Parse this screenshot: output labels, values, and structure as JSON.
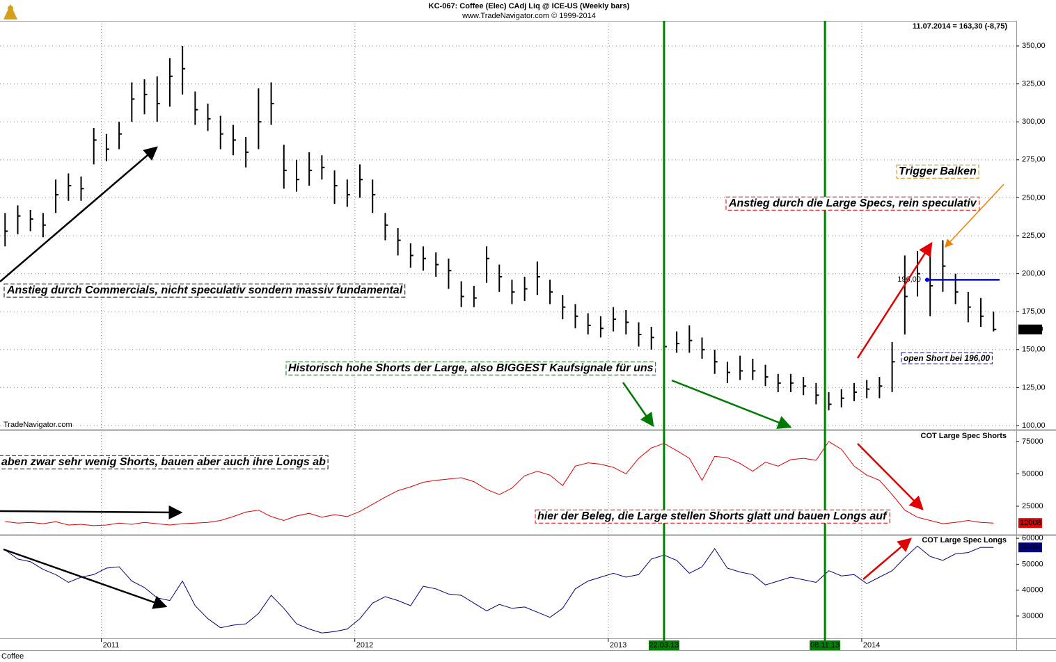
{
  "header": {
    "title": "KC-067:  Coffee (Elec) CAdj Liq @ ICE-US  (Weekly bars)",
    "subtitle": "www.TradeNavigator.com © 1999-2014",
    "last_quote": "11.07.2014 = 163,30 (-8,75)",
    "watermark": "TradeNavigator.com",
    "footer": "Coffee"
  },
  "chart_data": {
    "type": "ohlc",
    "x": [
      2010.62,
      2010.67,
      2010.72,
      2010.77,
      2010.82,
      2010.87,
      2010.92,
      2010.97,
      2011.02,
      2011.07,
      2011.12,
      2011.17,
      2011.22,
      2011.27,
      2011.32,
      2011.37,
      2011.42,
      2011.47,
      2011.52,
      2011.57,
      2011.62,
      2011.67,
      2011.72,
      2011.77,
      2011.82,
      2011.87,
      2011.92,
      2011.97,
      2012.02,
      2012.07,
      2012.12,
      2012.17,
      2012.22,
      2012.27,
      2012.32,
      2012.37,
      2012.42,
      2012.47,
      2012.52,
      2012.57,
      2012.62,
      2012.67,
      2012.72,
      2012.77,
      2012.82,
      2012.87,
      2012.92,
      2012.97,
      2013.02,
      2013.07,
      2013.12,
      2013.17,
      2013.22,
      2013.27,
      2013.32,
      2013.37,
      2013.42,
      2013.47,
      2013.52,
      2013.57,
      2013.62,
      2013.67,
      2013.72,
      2013.77,
      2013.82,
      2013.87,
      2013.92,
      2013.97,
      2014.02,
      2014.07,
      2014.12,
      2014.17,
      2014.22,
      2014.27,
      2014.32,
      2014.37,
      2014.42,
      2014.47,
      2014.52
    ],
    "xlim": [
      2010.6,
      2014.61
    ],
    "xticks": [
      2011,
      2012,
      2013,
      2014
    ],
    "markers": [
      {
        "value": 2013.22,
        "label": "22.03.13",
        "color": "#008000"
      },
      {
        "value": 2013.855,
        "label": "08.11.13",
        "color": "#008000"
      }
    ],
    "price": {
      "color": "#000000",
      "high": [
        240,
        245,
        242,
        240,
        262,
        266,
        264,
        296,
        292,
        300,
        326,
        328,
        330,
        342,
        350,
        320,
        312,
        304,
        298,
        290,
        322,
        326,
        285,
        275,
        280,
        278,
        268,
        262,
        272,
        262,
        240,
        230,
        220,
        218,
        214,
        210,
        195,
        192,
        218,
        206,
        196,
        198,
        208,
        196,
        186,
        180,
        174,
        172,
        178,
        176,
        168,
        165,
        158,
        162,
        166,
        158,
        150,
        142,
        146,
        144,
        140,
        134,
        134,
        132,
        128,
        122,
        124,
        128,
        130,
        132,
        155,
        212,
        215,
        212,
        222,
        200,
        188,
        184,
        175
      ],
      "low": [
        218,
        226,
        228,
        224,
        240,
        248,
        248,
        272,
        274,
        282,
        300,
        305,
        300,
        310,
        318,
        298,
        294,
        282,
        278,
        270,
        282,
        298,
        256,
        254,
        258,
        262,
        246,
        244,
        250,
        240,
        222,
        212,
        204,
        202,
        198,
        190,
        178,
        178,
        194,
        188,
        180,
        182,
        186,
        180,
        170,
        164,
        160,
        158,
        162,
        160,
        152,
        150,
        146,
        148,
        148,
        144,
        134,
        128,
        130,
        130,
        126,
        122,
        122,
        120,
        114,
        110,
        112,
        116,
        118,
        118,
        122,
        160,
        185,
        172,
        188,
        180,
        168,
        165,
        162
      ],
      "close": [
        228,
        238,
        236,
        232,
        252,
        258,
        256,
        288,
        282,
        292,
        315,
        318,
        312,
        330,
        335,
        308,
        302,
        292,
        288,
        280,
        300,
        312,
        268,
        262,
        268,
        270,
        258,
        252,
        262,
        252,
        232,
        222,
        212,
        210,
        206,
        202,
        185,
        184,
        210,
        198,
        188,
        190,
        198,
        188,
        178,
        172,
        166,
        164,
        170,
        168,
        160,
        158,
        152,
        154,
        156,
        150,
        142,
        135,
        136,
        136,
        132,
        128,
        128,
        126,
        120,
        114,
        118,
        122,
        124,
        126,
        142,
        185,
        200,
        192,
        205,
        188,
        178,
        172,
        163.3
      ],
      "ylim": [
        97.7,
        366.5
      ],
      "yticks": [
        {
          "value": 100,
          "label": "100,00"
        },
        {
          "value": 125,
          "label": "125,00"
        },
        {
          "value": 150,
          "label": "150,00"
        },
        {
          "value": 175,
          "label": "175,00"
        },
        {
          "value": 200,
          "label": "200,00"
        },
        {
          "value": 225,
          "label": "225,00"
        },
        {
          "value": 250,
          "label": "250,00"
        },
        {
          "value": 275,
          "label": "275,00"
        },
        {
          "value": 300,
          "label": "300,00"
        },
        {
          "value": 325,
          "label": "325,00"
        },
        {
          "value": 350,
          "label": "350,00"
        }
      ],
      "last_label": "163,30",
      "level": {
        "value": 196,
        "label": "196,00",
        "color": "#0000ff",
        "from": 2014.25
      }
    },
    "annotations": [
      {
        "text": "Anstieg durch Commercials, nicht speculativ sondern massiv fundamental",
        "color": "#000000"
      },
      {
        "text": "Historisch hohe Shorts der Large, also BIGGEST Kaufsignale für uns",
        "color": "#007a00"
      },
      {
        "text": "Trigger Balken",
        "color": "#f08000"
      },
      {
        "text": "Anstieg durch die Large Specs, rein speculativ",
        "color": "#e00000"
      },
      {
        "text": "open Short bei 196,00",
        "color": "#0000c0"
      },
      {
        "text": "aben zwar sehr wenig Shorts, bauen aber auch ihre Longs ab",
        "color": "#000000"
      },
      {
        "text": "hier der Beleg, die Large stellen Shorts glatt und bauen Longs auf",
        "color": "#e00000"
      }
    ],
    "panels": [
      {
        "type": "line",
        "title": "COT Large Spec Shorts",
        "color": "#e00000",
        "ylim": [
          3500,
          83000
        ],
        "yticks": [
          25000,
          50000,
          75000
        ],
        "values": [
          13200,
          12000,
          12500,
          11500,
          13000,
          10500,
          11000,
          10000,
          10500,
          12000,
          11000,
          12500,
          11500,
          10500,
          11500,
          12000,
          12500,
          14000,
          17000,
          20500,
          22000,
          17000,
          14000,
          17500,
          19500,
          16500,
          18500,
          17000,
          21000,
          26500,
          32000,
          37000,
          40000,
          43500,
          45000,
          46000,
          47000,
          44000,
          38000,
          34000,
          39000,
          48500,
          52000,
          49000,
          41000,
          56000,
          58500,
          57500,
          55000,
          50000,
          62000,
          70000,
          73500,
          68000,
          62000,
          45000,
          63500,
          62500,
          58000,
          52000,
          59000,
          56000,
          61000,
          62000,
          60500,
          75000,
          69000,
          56000,
          49000,
          45000,
          34000,
          22000,
          16500,
          14000,
          11500,
          12500,
          14000,
          12500,
          12008
        ]
      },
      {
        "type": "line",
        "title": "COT Large Spec Longs",
        "color": "#000080",
        "ylim": [
          21400,
          61100
        ],
        "yticks": [
          30000,
          40000,
          50000,
          60000
        ],
        "values": [
          55500,
          52000,
          51000,
          48000,
          46000,
          43000,
          45000,
          46000,
          48500,
          49000,
          43500,
          41000,
          37000,
          36000,
          43500,
          34000,
          29000,
          25500,
          26500,
          27000,
          31000,
          38000,
          33000,
          27000,
          25000,
          23500,
          24000,
          25000,
          29000,
          35000,
          37500,
          36000,
          34000,
          41500,
          40500,
          38500,
          38000,
          35000,
          32000,
          34500,
          33000,
          33500,
          31500,
          29500,
          33000,
          40500,
          43500,
          45000,
          46500,
          45000,
          46000,
          52000,
          53500,
          51500,
          46500,
          49000,
          56000,
          48500,
          47000,
          46000,
          42000,
          43500,
          45000,
          44000,
          43000,
          47500,
          45500,
          46000,
          42500,
          45000,
          47500,
          52500,
          57000,
          53000,
          51500,
          54000,
          54500,
          56500,
          56484
        ]
      }
    ]
  }
}
